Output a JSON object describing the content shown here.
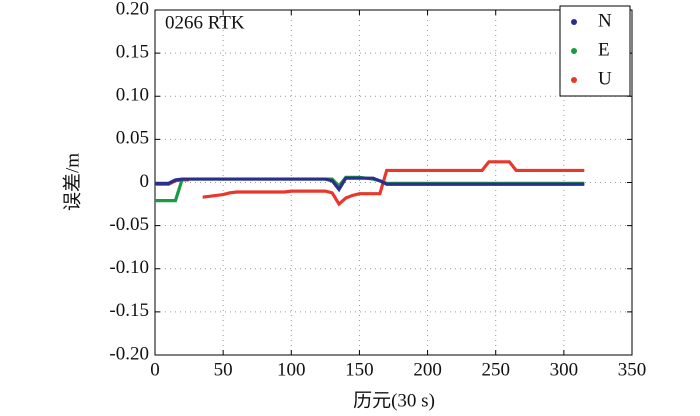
{
  "chart_data": {
    "type": "line",
    "annotation": "0266 RTK",
    "xlabel": "历元(30 s)",
    "ylabel": "误差/m",
    "x": [
      0,
      5,
      10,
      15,
      20,
      25,
      30,
      35,
      40,
      45,
      50,
      55,
      60,
      65,
      70,
      75,
      80,
      85,
      90,
      95,
      100,
      105,
      110,
      115,
      120,
      125,
      130,
      135,
      140,
      145,
      150,
      155,
      160,
      165,
      170,
      175,
      180,
      185,
      190,
      195,
      200,
      205,
      210,
      215,
      220,
      225,
      230,
      235,
      240,
      245,
      250,
      255,
      260,
      265,
      270,
      275,
      280,
      285,
      290,
      295,
      300,
      305,
      310,
      315
    ],
    "series": [
      {
        "name": "N",
        "color": "#2b2e8c",
        "values": [
          -0.001,
          -0.001,
          -0.001,
          0.003,
          0.004,
          0.004,
          0.004,
          0.004,
          0.004,
          0.004,
          0.004,
          0.004,
          0.004,
          0.004,
          0.004,
          0.004,
          0.004,
          0.004,
          0.004,
          0.004,
          0.004,
          0.004,
          0.004,
          0.004,
          0.004,
          0.004,
          0.002,
          -0.008,
          0.005,
          0.005,
          0.005,
          0.005,
          0.005,
          0.002,
          -0.002,
          -0.002,
          -0.002,
          -0.002,
          -0.002,
          -0.002,
          -0.002,
          -0.002,
          -0.002,
          -0.002,
          -0.002,
          -0.002,
          -0.002,
          -0.002,
          -0.002,
          -0.002,
          -0.002,
          -0.002,
          -0.002,
          -0.002,
          -0.002,
          -0.002,
          -0.002,
          -0.002,
          -0.002,
          -0.002,
          -0.002,
          -0.002,
          -0.002,
          -0.002
        ]
      },
      {
        "name": "E",
        "color": "#1a9a44",
        "values": [
          -0.021,
          -0.021,
          -0.021,
          -0.021,
          0.004,
          0.004,
          0.004,
          0.004,
          0.004,
          0.004,
          0.004,
          0.004,
          0.004,
          0.004,
          0.004,
          0.004,
          0.004,
          0.004,
          0.004,
          0.004,
          0.004,
          0.004,
          0.004,
          0.004,
          0.004,
          0.004,
          0.004,
          -0.004,
          0.006,
          0.006,
          0.006,
          0.005,
          0.004,
          0.002,
          -0.001,
          -0.001,
          -0.001,
          -0.001,
          -0.001,
          -0.001,
          -0.001,
          -0.001,
          -0.001,
          -0.001,
          -0.001,
          -0.001,
          -0.001,
          -0.001,
          -0.001,
          -0.001,
          -0.001,
          -0.001,
          -0.001,
          -0.001,
          -0.001,
          -0.001,
          -0.001,
          -0.001,
          -0.001,
          -0.001,
          -0.001,
          -0.001,
          -0.001,
          -0.001
        ]
      },
      {
        "name": "U",
        "color": "#e8382b",
        "values": [
          -0.002,
          -0.002,
          -0.002,
          0.002,
          0.003,
          0.003,
          null,
          -0.017,
          -0.016,
          -0.015,
          -0.014,
          -0.012,
          -0.011,
          -0.011,
          -0.011,
          -0.011,
          -0.011,
          -0.011,
          -0.011,
          -0.011,
          -0.01,
          -0.01,
          -0.01,
          -0.01,
          -0.01,
          -0.01,
          -0.012,
          -0.025,
          -0.018,
          -0.015,
          -0.013,
          -0.013,
          -0.013,
          -0.013,
          0.014,
          0.014,
          0.014,
          0.014,
          0.014,
          0.014,
          0.014,
          0.014,
          0.014,
          0.014,
          0.014,
          0.014,
          0.014,
          0.014,
          0.014,
          0.024,
          0.024,
          0.024,
          0.024,
          0.014,
          0.014,
          0.014,
          0.014,
          0.014,
          0.014,
          0.014,
          0.014,
          0.014,
          0.014,
          0.014
        ]
      }
    ],
    "xlim": [
      0,
      350
    ],
    "xticks": [
      0,
      50,
      100,
      150,
      200,
      250,
      300,
      350
    ],
    "ylim": [
      -0.2,
      0.2
    ],
    "yticks": [
      {
        "value": -0.2,
        "label": "-0.20"
      },
      -0.15,
      {
        "value": -0.1,
        "label": "-0.10"
      },
      -0.05,
      0,
      0.05,
      {
        "value": 0.1,
        "label": "0.10"
      },
      0.15,
      {
        "value": 0.2,
        "label": "0.20"
      }
    ],
    "grid": true,
    "legend": "upper right"
  }
}
